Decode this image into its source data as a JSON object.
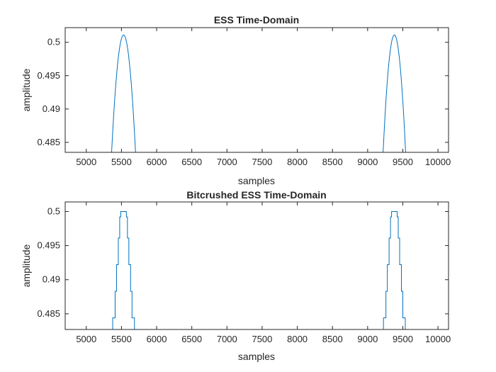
{
  "chart_data": [
    {
      "type": "line",
      "title": "ESS Time-Domain",
      "xlabel": "samples",
      "ylabel": "amplitude",
      "xlim": [
        4700,
        10150
      ],
      "ylim": [
        0.4835,
        0.5022
      ],
      "xticks": [
        5000,
        5500,
        6000,
        6500,
        7000,
        7500,
        8000,
        8500,
        9000,
        9500,
        10000
      ],
      "yticks": [
        0.485,
        0.49,
        0.495,
        0.5
      ],
      "ytick_labels": [
        "0.485",
        "0.49",
        "0.495",
        "0.5"
      ],
      "grid": false,
      "line_color": "#0072bd",
      "stepped": false,
      "peaks": [
        {
          "start": 5360,
          "center": 5530,
          "end": 5700,
          "max": 0.5011
        },
        {
          "start": 9220,
          "center": 9380,
          "end": 9540,
          "max": 0.5011
        }
      ]
    },
    {
      "type": "line",
      "title": "Bitcrushed ESS Time-Domain",
      "xlabel": "samples",
      "ylabel": "amplitude",
      "xlim": [
        4700,
        10150
      ],
      "ylim": [
        0.4827,
        0.5014
      ],
      "xticks": [
        5000,
        5500,
        6000,
        6500,
        7000,
        7500,
        8000,
        8500,
        9000,
        9500,
        10000
      ],
      "yticks": [
        0.485,
        0.49,
        0.495,
        0.5
      ],
      "ytick_labels": [
        "0.485",
        "0.49",
        "0.495",
        "0.5"
      ],
      "grid": false,
      "line_color": "#0072bd",
      "stepped": true,
      "steps": [
        {
          "level": 0.5,
          "half_width": 40
        },
        {
          "level": 0.4992,
          "half_width": 55
        },
        {
          "level": 0.4961,
          "half_width": 75
        },
        {
          "level": 0.4922,
          "half_width": 100
        },
        {
          "level": 0.4883,
          "half_width": 120
        },
        {
          "level": 0.4844,
          "half_width": 155
        }
      ],
      "peak_centers": [
        5530,
        9380
      ]
    }
  ]
}
